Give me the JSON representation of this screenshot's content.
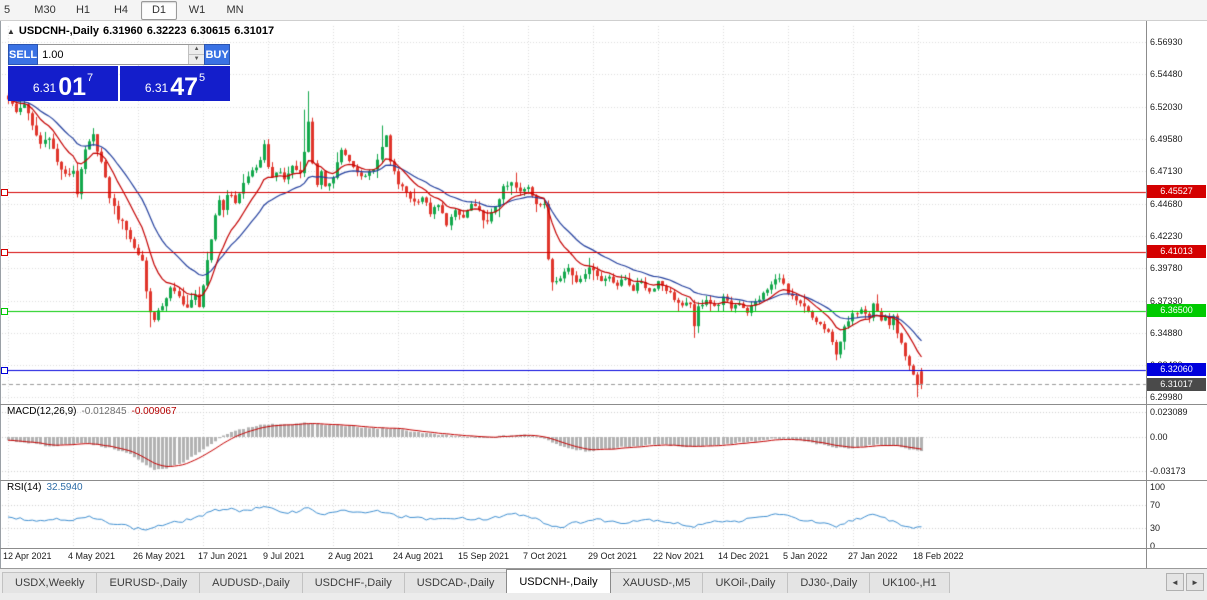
{
  "toolbar": {
    "timeframes": [
      "5",
      "M30",
      "H1",
      "H4",
      "D1",
      "W1",
      "MN"
    ],
    "active": "D1"
  },
  "chart": {
    "title": {
      "toggle_icon": "▲",
      "symbol": "USDCNH-,Daily",
      "open": "6.31960",
      "high": "6.32223",
      "low": "6.30615",
      "close": "6.31017"
    },
    "one_click": {
      "sell_label": "SELL",
      "buy_label": "BUY",
      "volume": "1.00",
      "spin_up": "▲",
      "spin_down": "▼",
      "bid": {
        "small": "6.31",
        "big": "01",
        "sup": "7"
      },
      "ask": {
        "small": "6.31",
        "big": "47",
        "sup": "5"
      }
    },
    "price_axis": [
      "6.56930",
      "6.54480",
      "6.52030",
      "6.49580",
      "6.47130",
      "6.44680",
      "6.42230",
      "6.39780",
      "6.37330",
      "6.34880",
      "6.32430",
      "6.29980"
    ],
    "dates": [
      "12 Apr 2021",
      "4 May 2021",
      "26 May 2021",
      "17 Jun 2021",
      "9 Jul 2021",
      "2 Aug 2021",
      "24 Aug 2021",
      "15 Sep 2021",
      "7 Oct 2021",
      "29 Oct 2021",
      "22 Nov 2021",
      "14 Dec 2021",
      "5 Jan 2022",
      "27 Jan 2022",
      "18 Feb 2022"
    ],
    "hlines": [
      {
        "label": "6.45527",
        "price": 6.45527,
        "color": "#d40000"
      },
      {
        "label": "6.41013",
        "price": 6.41013,
        "color": "#d40000"
      },
      {
        "label": "6.36500",
        "price": 6.365,
        "color": "#00ca00"
      },
      {
        "label": "6.32060",
        "price": 6.3206,
        "color": "#0000dc"
      }
    ],
    "current_price": {
      "label": "6.31017",
      "price": 6.31017,
      "color": "#4a4a4a"
    }
  },
  "chart_data": {
    "type": "candlestick",
    "symbol": "USDCNH",
    "timeframe": "Daily",
    "candles_count": 226,
    "y_range": [
      6.2998,
      6.5693
    ],
    "ohlc_current": {
      "open": 6.3196,
      "high": 6.32223,
      "low": 6.30615,
      "close": 6.31017
    },
    "colors": {
      "up": "#13a84c",
      "down": "#e0352b",
      "ma_fast": "#c40000",
      "ma_slow": "#24409e",
      "grid": "#dcdcdc"
    },
    "moving_averages": [
      {
        "period": 10,
        "color": "#c40000"
      },
      {
        "period": 21,
        "color": "#24409e"
      }
    ],
    "close_path_anchors": [
      [
        0,
        6.527
      ],
      [
        2,
        6.516
      ],
      [
        4,
        6.523
      ],
      [
        6,
        6.505
      ],
      [
        8,
        6.492
      ],
      [
        10,
        6.498
      ],
      [
        12,
        6.478
      ],
      [
        14,
        6.468
      ],
      [
        16,
        6.472
      ],
      [
        17,
        6.455
      ],
      [
        19,
        6.487
      ],
      [
        21,
        6.498
      ],
      [
        23,
        6.478
      ],
      [
        25,
        6.452
      ],
      [
        27,
        6.436
      ],
      [
        29,
        6.428
      ],
      [
        31,
        6.413
      ],
      [
        33,
        6.404
      ],
      [
        34,
        6.38
      ],
      [
        35,
        6.366
      ],
      [
        36,
        6.358
      ],
      [
        38,
        6.37
      ],
      [
        40,
        6.382
      ],
      [
        42,
        6.376
      ],
      [
        44,
        6.368
      ],
      [
        46,
        6.377
      ],
      [
        47,
        6.37
      ],
      [
        48,
        6.385
      ],
      [
        49,
        6.402
      ],
      [
        50,
        6.418
      ],
      [
        51,
        6.438
      ],
      [
        52,
        6.45
      ],
      [
        53,
        6.442
      ],
      [
        54,
        6.455
      ],
      [
        56,
        6.448
      ],
      [
        58,
        6.462
      ],
      [
        60,
        6.472
      ],
      [
        62,
        6.478
      ],
      [
        63,
        6.49
      ],
      [
        64,
        6.476
      ],
      [
        65,
        6.466
      ],
      [
        66,
        6.472
      ],
      [
        68,
        6.465
      ],
      [
        70,
        6.475
      ],
      [
        72,
        6.47
      ],
      [
        73,
        6.488
      ],
      [
        74,
        6.508
      ],
      [
        75,
        6.478
      ],
      [
        76,
        6.462
      ],
      [
        77,
        6.47
      ],
      [
        78,
        6.458
      ],
      [
        80,
        6.468
      ],
      [
        82,
        6.488
      ],
      [
        84,
        6.478
      ],
      [
        86,
        6.47
      ],
      [
        88,
        6.468
      ],
      [
        90,
        6.474
      ],
      [
        92,
        6.488
      ],
      [
        93,
        6.498
      ],
      [
        94,
        6.478
      ],
      [
        96,
        6.462
      ],
      [
        98,
        6.455
      ],
      [
        100,
        6.448
      ],
      [
        102,
        6.452
      ],
      [
        104,
        6.44
      ],
      [
        106,
        6.445
      ],
      [
        108,
        6.432
      ],
      [
        110,
        6.44
      ],
      [
        112,
        6.436
      ],
      [
        114,
        6.446
      ],
      [
        116,
        6.44
      ],
      [
        118,
        6.432
      ],
      [
        120,
        6.445
      ],
      [
        122,
        6.458
      ],
      [
        124,
        6.462
      ],
      [
        126,
        6.455
      ],
      [
        128,
        6.46
      ],
      [
        130,
        6.448
      ],
      [
        132,
        6.445
      ],
      [
        133,
        6.405
      ],
      [
        134,
        6.388
      ],
      [
        136,
        6.392
      ],
      [
        138,
        6.398
      ],
      [
        140,
        6.388
      ],
      [
        142,
        6.395
      ],
      [
        144,
        6.398
      ],
      [
        146,
        6.388
      ],
      [
        148,
        6.392
      ],
      [
        150,
        6.385
      ],
      [
        152,
        6.39
      ],
      [
        154,
        6.382
      ],
      [
        156,
        6.388
      ],
      [
        158,
        6.38
      ],
      [
        160,
        6.388
      ],
      [
        162,
        6.382
      ],
      [
        164,
        6.375
      ],
      [
        166,
        6.368
      ],
      [
        168,
        6.372
      ],
      [
        169,
        6.352
      ],
      [
        170,
        6.368
      ],
      [
        172,
        6.375
      ],
      [
        174,
        6.368
      ],
      [
        176,
        6.375
      ],
      [
        178,
        6.368
      ],
      [
        180,
        6.372
      ],
      [
        182,
        6.365
      ],
      [
        184,
        6.372
      ],
      [
        186,
        6.378
      ],
      [
        188,
        6.385
      ],
      [
        190,
        6.392
      ],
      [
        192,
        6.378
      ],
      [
        194,
        6.372
      ],
      [
        196,
        6.368
      ],
      [
        198,
        6.36
      ],
      [
        200,
        6.355
      ],
      [
        202,
        6.348
      ],
      [
        204,
        6.334
      ],
      [
        206,
        6.352
      ],
      [
        208,
        6.362
      ],
      [
        210,
        6.368
      ],
      [
        212,
        6.362
      ],
      [
        213,
        6.372
      ],
      [
        214,
        6.365
      ],
      [
        215,
        6.358
      ],
      [
        216,
        6.362
      ],
      [
        217,
        6.355
      ],
      [
        218,
        6.36
      ],
      [
        219,
        6.35
      ],
      [
        220,
        6.34
      ],
      [
        221,
        6.33
      ],
      [
        222,
        6.322
      ],
      [
        223,
        6.316
      ],
      [
        224,
        6.308
      ],
      [
        225,
        6.31
      ]
    ],
    "high_spikes": [
      [
        0,
        6.529
      ],
      [
        3,
        6.531
      ],
      [
        21,
        6.504
      ],
      [
        63,
        6.495
      ],
      [
        73,
        6.518
      ],
      [
        74,
        6.532
      ],
      [
        92,
        6.506
      ]
    ],
    "low_spikes": [
      [
        35,
        6.353
      ],
      [
        169,
        6.345
      ],
      [
        204,
        6.328
      ],
      [
        224,
        6.3
      ],
      [
        225,
        6.301
      ]
    ],
    "sr_lines": [
      6.45527,
      6.41013,
      6.365,
      6.3206
    ],
    "bid_line": 6.31017
  },
  "macd": {
    "name": "MACD(12,26,9)",
    "value_main": "-0.012845",
    "value_signal": "-0.009067",
    "axis_labels": [
      "0.023089",
      "0.00",
      "-0.03173"
    ],
    "axis_values": [
      0.023089,
      0,
      -0.03173
    ],
    "hist_color": "#b2b2b2",
    "signal_color": "#c40000",
    "anchors": [
      [
        0,
        -0.003
      ],
      [
        6,
        -0.006
      ],
      [
        10,
        -0.009
      ],
      [
        14,
        -0.007
      ],
      [
        18,
        -0.005
      ],
      [
        22,
        -0.008
      ],
      [
        26,
        -0.011
      ],
      [
        30,
        -0.016
      ],
      [
        33,
        -0.024
      ],
      [
        36,
        -0.03
      ],
      [
        39,
        -0.029
      ],
      [
        42,
        -0.025
      ],
      [
        45,
        -0.019
      ],
      [
        48,
        -0.012
      ],
      [
        51,
        -0.004
      ],
      [
        54,
        0.003
      ],
      [
        58,
        0.008
      ],
      [
        62,
        0.011
      ],
      [
        66,
        0.012
      ],
      [
        70,
        0.012
      ],
      [
        74,
        0.013
      ],
      [
        78,
        0.011
      ],
      [
        82,
        0.011
      ],
      [
        86,
        0.009
      ],
      [
        90,
        0.008
      ],
      [
        94,
        0.008
      ],
      [
        98,
        0.006
      ],
      [
        102,
        0.004
      ],
      [
        106,
        0.002
      ],
      [
        110,
        0.001
      ],
      [
        114,
        0.0
      ],
      [
        118,
        -0.001
      ],
      [
        122,
        0.001
      ],
      [
        126,
        0.002
      ],
      [
        130,
        0.001
      ],
      [
        133,
        -0.003
      ],
      [
        136,
        -0.008
      ],
      [
        139,
        -0.011
      ],
      [
        142,
        -0.013
      ],
      [
        145,
        -0.012
      ],
      [
        148,
        -0.011
      ],
      [
        152,
        -0.009
      ],
      [
        156,
        -0.008
      ],
      [
        160,
        -0.007
      ],
      [
        164,
        -0.008
      ],
      [
        168,
        -0.009
      ],
      [
        172,
        -0.008
      ],
      [
        176,
        -0.007
      ],
      [
        180,
        -0.005
      ],
      [
        184,
        -0.004
      ],
      [
        188,
        -0.002
      ],
      [
        192,
        -0.002
      ],
      [
        196,
        -0.004
      ],
      [
        200,
        -0.007
      ],
      [
        204,
        -0.01
      ],
      [
        208,
        -0.01
      ],
      [
        212,
        -0.008
      ],
      [
        216,
        -0.007
      ],
      [
        220,
        -0.009
      ],
      [
        223,
        -0.012
      ],
      [
        225,
        -0.013
      ]
    ]
  },
  "rsi": {
    "name": "RSI(14)",
    "value": "32.5940",
    "axis_labels": [
      "100",
      "70",
      "30",
      "0"
    ],
    "axis_values": [
      100,
      70,
      30,
      0
    ],
    "levels": [
      70,
      30
    ],
    "line_color": "#3e8ed0",
    "anchors": [
      [
        0,
        50
      ],
      [
        4,
        46
      ],
      [
        8,
        42
      ],
      [
        12,
        47
      ],
      [
        16,
        44
      ],
      [
        20,
        49
      ],
      [
        24,
        41
      ],
      [
        28,
        37
      ],
      [
        31,
        30
      ],
      [
        34,
        28
      ],
      [
        37,
        34
      ],
      [
        40,
        38
      ],
      [
        44,
        44
      ],
      [
        48,
        52
      ],
      [
        51,
        60
      ],
      [
        54,
        64
      ],
      [
        57,
        60
      ],
      [
        60,
        62
      ],
      [
        63,
        66
      ],
      [
        66,
        60
      ],
      [
        69,
        57
      ],
      [
        72,
        60
      ],
      [
        74,
        66
      ],
      [
        76,
        58
      ],
      [
        78,
        52
      ],
      [
        80,
        56
      ],
      [
        82,
        62
      ],
      [
        85,
        57
      ],
      [
        88,
        55
      ],
      [
        91,
        60
      ],
      [
        94,
        54
      ],
      [
        97,
        50
      ],
      [
        100,
        48
      ],
      [
        103,
        45
      ],
      [
        106,
        47
      ],
      [
        109,
        44
      ],
      [
        112,
        48
      ],
      [
        115,
        46
      ],
      [
        118,
        44
      ],
      [
        121,
        50
      ],
      [
        124,
        55
      ],
      [
        127,
        52
      ],
      [
        130,
        48
      ],
      [
        133,
        36
      ],
      [
        136,
        32
      ],
      [
        139,
        38
      ],
      [
        142,
        42
      ],
      [
        145,
        45
      ],
      [
        148,
        42
      ],
      [
        151,
        39
      ],
      [
        154,
        43
      ],
      [
        157,
        45
      ],
      [
        160,
        44
      ],
      [
        163,
        40
      ],
      [
        166,
        37
      ],
      [
        169,
        31
      ],
      [
        172,
        41
      ],
      [
        175,
        43
      ],
      [
        178,
        40
      ],
      [
        181,
        44
      ],
      [
        184,
        47
      ],
      [
        187,
        51
      ],
      [
        190,
        55
      ],
      [
        193,
        48
      ],
      [
        196,
        44
      ],
      [
        199,
        40
      ],
      [
        202,
        36
      ],
      [
        204,
        31
      ],
      [
        207,
        42
      ],
      [
        210,
        48
      ],
      [
        213,
        52
      ],
      [
        216,
        47
      ],
      [
        218,
        42
      ],
      [
        220,
        36
      ],
      [
        222,
        32
      ],
      [
        224,
        30
      ],
      [
        225,
        32.6
      ]
    ]
  },
  "tabs": {
    "items": [
      "USDX,Weekly",
      "EURUSD-,Daily",
      "AUDUSD-,Daily",
      "USDCHF-,Daily",
      "USDCAD-,Daily",
      "USDCNH-,Daily",
      "XAUUSD-,M5",
      "UKOil-,Daily",
      "DJ30-,Daily",
      "UK100-,H1"
    ],
    "active": "USDCNH-,Daily",
    "left_arrow": "◄",
    "right_arrow": "►"
  }
}
